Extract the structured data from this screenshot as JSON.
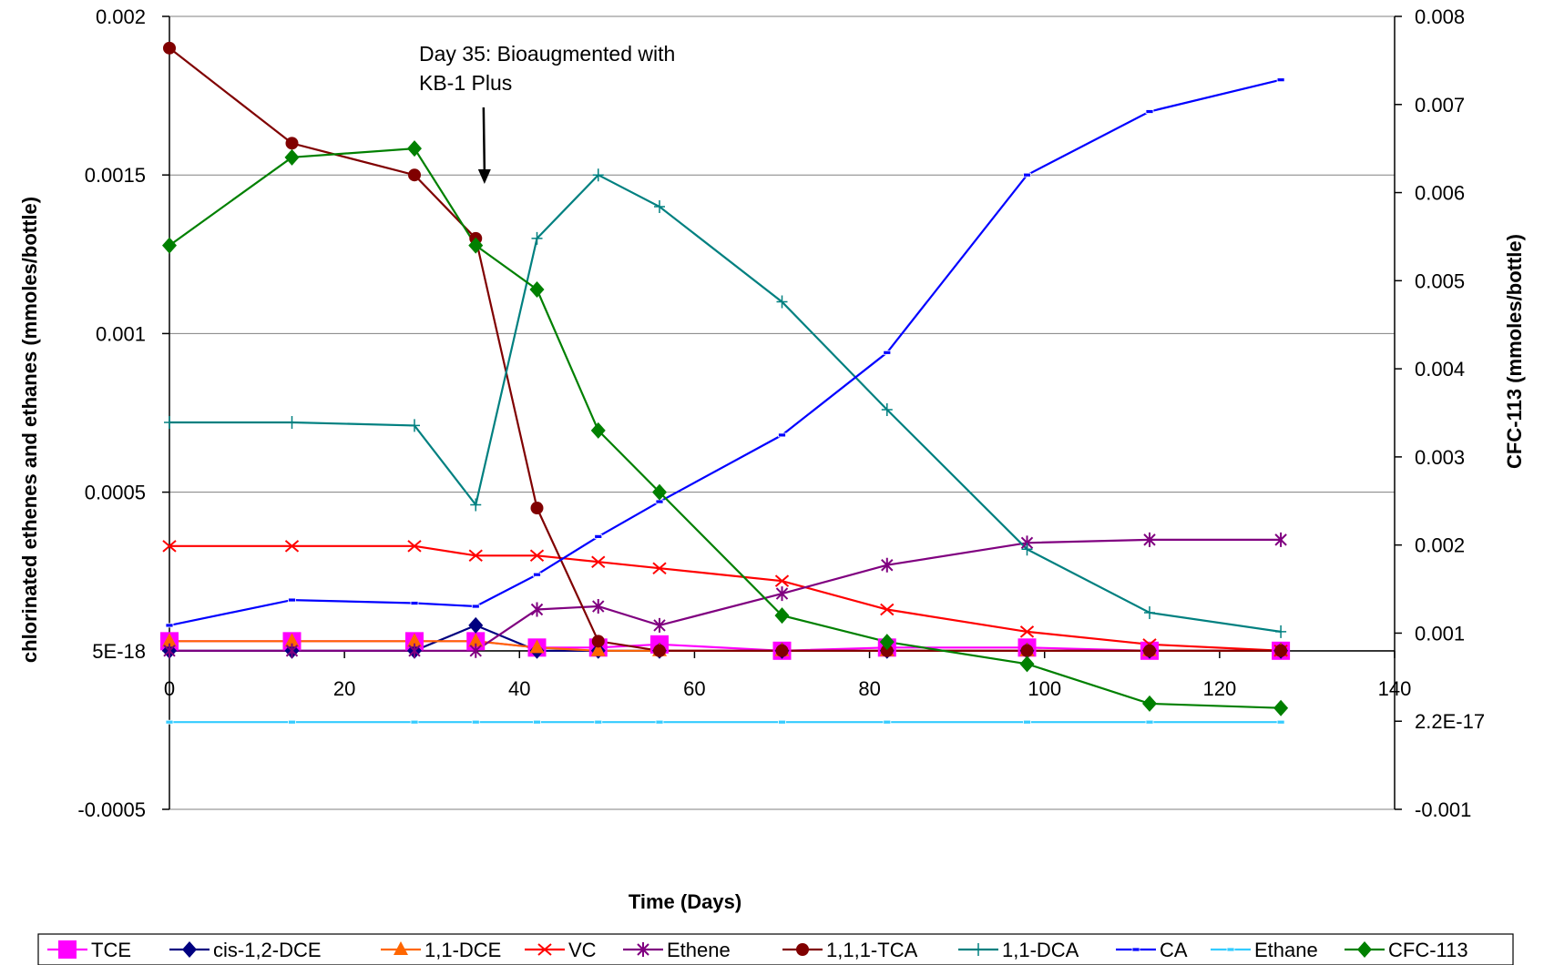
{
  "chart_data": {
    "type": "line",
    "title": "",
    "xlabel": "Time (Days)",
    "ylabel": "chlorinated ethenes and ethanes  (mmoles/bottle)",
    "y2label": "CFC-113 (mmoles/bottle)",
    "xlim": [
      0,
      140
    ],
    "ylim": [
      -0.0005,
      0.002
    ],
    "y2lim": [
      -0.001,
      0.008
    ],
    "x_ticks": [
      "0",
      "20",
      "40",
      "60",
      "80",
      "100",
      "120",
      "140"
    ],
    "y_ticks": [
      "-0.0005",
      "5E-18",
      "0.0005",
      "0.001",
      "0.0015",
      "0.002"
    ],
    "y2_ticks": [
      "-0.001",
      "2.2E-17",
      "0.001",
      "0.002",
      "0.003",
      "0.004",
      "0.005",
      "0.006",
      "0.007",
      "0.008"
    ],
    "grid": "horizontal",
    "legend_position": "bottom",
    "annotation": {
      "lines": [
        "Day 35: Bioaugmented with",
        "KB-1 Plus"
      ],
      "arrow_x": 36
    },
    "x": [
      0,
      14,
      28,
      35,
      42,
      49,
      56,
      70,
      82,
      98,
      112,
      127
    ],
    "series": [
      {
        "name": "TCE",
        "axis": "left",
        "color": "#ff00ff",
        "marker": "square",
        "values": [
          3e-05,
          3e-05,
          3e-05,
          3e-05,
          1e-05,
          1e-05,
          2e-05,
          0,
          1e-05,
          1e-05,
          0,
          0
        ]
      },
      {
        "name": "cis-1,2-DCE",
        "axis": "left",
        "color": "#000080",
        "marker": "diamond",
        "values": [
          0,
          0,
          0,
          8e-05,
          0,
          0,
          0,
          0,
          0,
          0,
          0,
          0
        ]
      },
      {
        "name": "1,1-DCE",
        "axis": "left",
        "color": "#ff6600",
        "marker": "triangle",
        "values": [
          3e-05,
          3e-05,
          3e-05,
          3e-05,
          1e-05,
          0,
          0,
          0,
          0,
          0,
          0,
          0
        ]
      },
      {
        "name": "VC",
        "axis": "left",
        "color": "#ff0000",
        "marker": "x",
        "values": [
          0.00033,
          0.00033,
          0.00033,
          0.0003,
          0.0003,
          0.00028,
          0.00026,
          0.00022,
          0.00013,
          6e-05,
          2e-05,
          0
        ]
      },
      {
        "name": "Ethene",
        "axis": "left",
        "color": "#800080",
        "marker": "star",
        "values": [
          0,
          0,
          0,
          0,
          0.00013,
          0.00014,
          8e-05,
          0.00018,
          0.00027,
          0.00034,
          0.00035,
          0.00035
        ]
      },
      {
        "name": "1,1,1-TCA",
        "axis": "left",
        "color": "#800000",
        "marker": "circle",
        "values": [
          0.0019,
          0.0016,
          0.0015,
          0.0013,
          0.00045,
          3e-05,
          0,
          0,
          0,
          0,
          0,
          0
        ]
      },
      {
        "name": "1,1-DCA",
        "axis": "left",
        "color": "#008080",
        "marker": "plus",
        "values": [
          0.00072,
          0.00072,
          0.00071,
          0.00046,
          0.0013,
          0.0015,
          0.0014,
          0.0011,
          0.00076,
          0.00032,
          0.00012,
          6e-05
        ]
      },
      {
        "name": "CA",
        "axis": "left",
        "color": "#0000ff",
        "marker": "dash",
        "values": [
          8e-05,
          0.00016,
          0.00015,
          0.00014,
          0.00024,
          0.00036,
          0.00047,
          0.00068,
          0.00094,
          0.0015,
          0.0017,
          0.0018
        ]
      },
      {
        "name": "Ethane",
        "axis": "left",
        "color": "#33ccff",
        "marker": "dash",
        "values": [
          -0.000225,
          -0.000225,
          -0.000225,
          -0.000225,
          -0.000225,
          -0.000225,
          -0.000225,
          -0.000225,
          -0.000225,
          -0.000225,
          -0.000225,
          -0.000225
        ]
      },
      {
        "name": "CFC-113",
        "axis": "right",
        "color": "#008000",
        "marker": "diamond",
        "values": [
          0.0054,
          0.0064,
          0.0065,
          0.0054,
          0.0049,
          0.0033,
          0.0026,
          0.0012,
          0.0009,
          0.00065,
          0.0002,
          0.00015
        ]
      }
    ]
  }
}
